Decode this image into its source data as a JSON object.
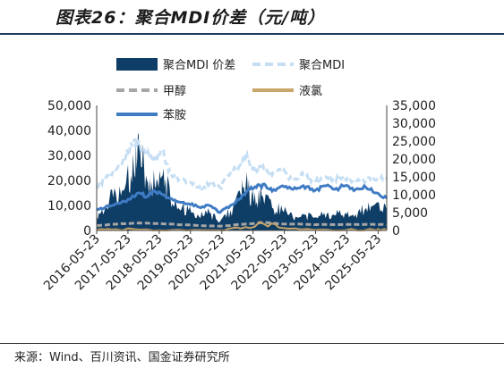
{
  "title": "图表26：聚合MDI价差（元/吨）",
  "source": "来源：Wind、百川资讯、国金证券研究所",
  "colors": {
    "spread": "#0e3d66",
    "price": "#c5def4",
    "methanol": "#a6a6a6",
    "chlorine": "#c9a56a",
    "aniline": "#3f7cc4"
  },
  "chart_data": {
    "type": "area",
    "title": "图表26：聚合MDI价差（元/吨）",
    "x_ticks": [
      "2016-05-23",
      "2017-05-23",
      "2018-05-23",
      "2019-05-23",
      "2020-05-23",
      "2021-05-23",
      "2022-05-23",
      "2023-05-23",
      "2024-05-23",
      "2025-05-23"
    ],
    "x_range": [
      "2016-05-23",
      "2025-08-31"
    ],
    "y_left_range": [
      0,
      50000
    ],
    "y_left_ticks": [
      "0",
      "10,000",
      "20,000",
      "30,000",
      "40,000",
      "50,000"
    ],
    "y_right_range": [
      0,
      35000
    ],
    "y_right_ticks": [
      "0",
      "5,000",
      "10,000",
      "15,000",
      "20,000",
      "25,000",
      "30,000",
      "35,000"
    ],
    "legend_position": "top",
    "series": [
      {
        "name": "聚合MDI 价差",
        "axis": "left",
        "type": "area",
        "x": [
          "2016-05-23",
          "2016-09-01",
          "2017-01-01",
          "2017-05-01",
          "2017-08-01",
          "2017-10-01",
          "2018-01-01",
          "2018-04-01",
          "2018-07-01",
          "2018-10-01",
          "2019-01-01",
          "2019-05-01",
          "2019-09-01",
          "2020-01-01",
          "2020-05-01",
          "2020-09-01",
          "2021-01-01",
          "2021-03-01",
          "2021-06-01",
          "2021-09-01",
          "2022-01-01",
          "2022-05-01",
          "2022-09-01",
          "2023-01-01",
          "2023-05-01",
          "2023-09-01",
          "2024-01-01",
          "2024-05-01",
          "2024-09-01",
          "2025-01-01",
          "2025-05-01",
          "2025-08-31"
        ],
        "values": [
          6000,
          9000,
          15000,
          19000,
          24000,
          34000,
          20000,
          18000,
          22000,
          13000,
          9000,
          8000,
          5500,
          7000,
          3500,
          8000,
          14000,
          19000,
          11000,
          14000,
          9000,
          8000,
          5000,
          6500,
          5000,
          7000,
          6000,
          7000,
          6500,
          9000,
          11000,
          8000
        ]
      },
      {
        "name": "聚合MDI",
        "axis": "right",
        "type": "dashed",
        "x": [
          "2016-05-23",
          "2016-09-01",
          "2017-01-01",
          "2017-05-01",
          "2017-08-01",
          "2017-10-01",
          "2018-01-01",
          "2018-04-01",
          "2018-07-01",
          "2018-10-01",
          "2019-01-01",
          "2019-05-01",
          "2019-09-01",
          "2020-01-01",
          "2020-05-01",
          "2020-09-01",
          "2021-01-01",
          "2021-03-01",
          "2021-06-01",
          "2021-09-01",
          "2022-01-01",
          "2022-05-01",
          "2022-09-01",
          "2023-01-01",
          "2023-05-01",
          "2023-09-01",
          "2024-01-01",
          "2024-05-01",
          "2024-09-01",
          "2025-01-01",
          "2025-05-01",
          "2025-08-31"
        ],
        "values": [
          12000,
          14500,
          17000,
          21000,
          25000,
          24000,
          21000,
          20000,
          22000,
          16000,
          14000,
          13500,
          12000,
          13000,
          12000,
          16000,
          18500,
          20500,
          17000,
          17500,
          15500,
          16500,
          14000,
          15500,
          14000,
          15000,
          14500,
          14500,
          14000,
          14000,
          14000,
          14500
        ]
      },
      {
        "name": "甲醇",
        "axis": "left",
        "type": "dashed",
        "x": [
          "2016-05-23",
          "2017-01-01",
          "2017-10-01",
          "2018-04-01",
          "2019-01-01",
          "2020-05-01",
          "2021-01-01",
          "2021-10-01",
          "2022-05-01",
          "2023-05-01",
          "2024-05-01",
          "2025-05-01",
          "2025-08-31"
        ],
        "values": [
          1900,
          2500,
          3000,
          2800,
          2300,
          1700,
          2400,
          3200,
          2600,
          2300,
          2400,
          2400,
          2300
        ]
      },
      {
        "name": "液氯",
        "axis": "left",
        "type": "line",
        "x": [
          "2016-05-23",
          "2017-01-01",
          "2018-01-01",
          "2019-01-01",
          "2020-05-01",
          "2021-01-01",
          "2021-10-01",
          "2022-05-01",
          "2023-05-01",
          "2024-05-01",
          "2025-05-01",
          "2025-08-31"
        ],
        "values": [
          200,
          500,
          400,
          300,
          100,
          800,
          2500,
          1000,
          200,
          100,
          100,
          100
        ]
      },
      {
        "name": "苯胺",
        "axis": "right",
        "type": "line",
        "x": [
          "2016-05-23",
          "2016-09-01",
          "2017-01-01",
          "2017-05-01",
          "2017-10-01",
          "2018-01-01",
          "2018-04-01",
          "2018-07-01",
          "2018-10-01",
          "2019-01-01",
          "2019-05-01",
          "2019-09-01",
          "2020-01-01",
          "2020-05-01",
          "2020-09-01",
          "2021-01-01",
          "2021-04-01",
          "2021-07-01",
          "2021-10-01",
          "2022-01-01",
          "2022-05-01",
          "2022-09-01",
          "2023-01-01",
          "2023-05-01",
          "2023-09-01",
          "2024-01-01",
          "2024-05-01",
          "2024-09-01",
          "2025-01-01",
          "2025-05-01",
          "2025-08-31"
        ],
        "values": [
          6000,
          6500,
          7500,
          8000,
          10500,
          9500,
          11000,
          10000,
          9000,
          8000,
          7500,
          6500,
          7000,
          5000,
          7000,
          9000,
          11500,
          12000,
          13000,
          11000,
          12500,
          11500,
          12500,
          11000,
          12500,
          11500,
          12500,
          11500,
          12000,
          10500,
          9000
        ]
      }
    ]
  }
}
